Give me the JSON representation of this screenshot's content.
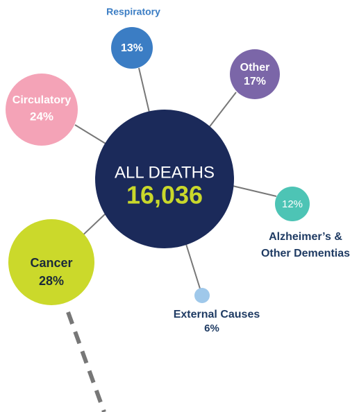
{
  "center": {
    "label": "ALL DEATHS",
    "value": "16,036"
  },
  "nodes": [
    {
      "label": "Respiratory",
      "percent": "13%"
    },
    {
      "label": "Other",
      "percent": "17%"
    },
    {
      "label": "Circulatory",
      "percent": "24%"
    },
    {
      "label_lines": [
        "Alzheimer’s &",
        "Other Dementias"
      ],
      "percent": "12%"
    },
    {
      "label": "External Causes",
      "percent": "6%"
    },
    {
      "label": "Cancer",
      "percent": "28%"
    }
  ]
}
